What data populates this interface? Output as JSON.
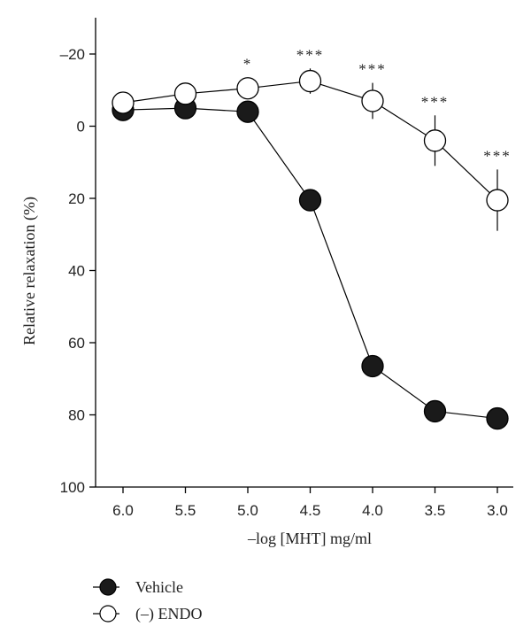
{
  "chart_data": {
    "type": "line",
    "x": [
      6.0,
      5.5,
      5.0,
      4.5,
      4.0,
      3.5,
      3.0
    ],
    "x_tick_labels": [
      "6.0",
      "5.5",
      "5.0",
      "4.5",
      "4.0",
      "3.5",
      "3.0"
    ],
    "xlabel": "–log [MHT] mg/ml",
    "x_reversed": true,
    "ylabel": "Relative relaxation (%)",
    "ylim": [
      -20,
      100
    ],
    "y_reversed": true,
    "y_ticks": [
      -20,
      0,
      20,
      40,
      60,
      80,
      100
    ],
    "y_tick_labels": [
      "–20",
      "0",
      "20",
      "40",
      "60",
      "80",
      "100"
    ],
    "grid": false,
    "legend_position": "bottom-left",
    "series": [
      {
        "name": "Vehicle",
        "marker": "filled-circle",
        "values": [
          -4.5,
          -5,
          -4,
          20.5,
          66.5,
          79,
          81
        ]
      },
      {
        "name": "(–) ENDO",
        "marker": "open-circle",
        "values": [
          -6.5,
          -9,
          -10.5,
          -12.5,
          -7,
          4,
          20.5
        ],
        "errors": [
          0,
          0,
          0,
          3.5,
          5,
          7,
          8.5
        ]
      }
    ],
    "annotations": [
      {
        "x": 5.0,
        "text": "*"
      },
      {
        "x": 4.5,
        "text": "***"
      },
      {
        "x": 4.0,
        "text": "***"
      },
      {
        "x": 3.5,
        "text": "***"
      },
      {
        "x": 3.0,
        "text": "***"
      }
    ]
  }
}
